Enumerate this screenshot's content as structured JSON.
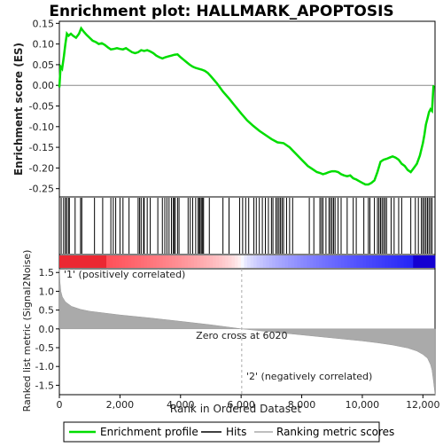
{
  "chart_data": {
    "type": "line",
    "title": "Enrichment plot: HALLMARK_APOPTOSIS",
    "xlabel": "Rank in Ordered Dataset",
    "xlim": [
      0,
      12400
    ],
    "x_ticks": [
      0,
      2000,
      4000,
      6000,
      8000,
      10000,
      12000
    ],
    "x_tick_labels": [
      "0",
      "2,000",
      "4,000",
      "6,000",
      "8,000",
      "10,000",
      "12,000"
    ],
    "es_panel": {
      "ylabel": "Enrichment score (ES)",
      "ylim": [
        -0.27,
        0.155
      ],
      "y_ticks": [
        0.15,
        0.1,
        0.05,
        0.0,
        -0.05,
        -0.1,
        -0.15,
        -0.2,
        -0.25
      ],
      "y_tick_labels": [
        "0.15",
        "0.10",
        "0.05",
        "0.00",
        "-0.05",
        "-0.10",
        "-0.15",
        "-0.20",
        "-0.25"
      ],
      "series": [
        {
          "name": "Enrichment profile",
          "color": "#00dd00",
          "x": [
            0,
            40,
            90,
            150,
            200,
            250,
            300,
            380,
            450,
            550,
            650,
            720,
            800,
            900,
            1000,
            1100,
            1200,
            1300,
            1400,
            1500,
            1600,
            1700,
            1800,
            1900,
            2000,
            2100,
            2200,
            2300,
            2400,
            2500,
            2600,
            2700,
            2800,
            2900,
            3000,
            3100,
            3200,
            3300,
            3400,
            3500,
            3600,
            3700,
            3800,
            3900,
            4000,
            4100,
            4200,
            4300,
            4400,
            4500,
            4600,
            4700,
            4800,
            4900,
            5000,
            5200,
            5400,
            5600,
            5800,
            6000,
            6200,
            6400,
            6600,
            6800,
            7000,
            7200,
            7400,
            7600,
            7800,
            8000,
            8200,
            8400,
            8500,
            8600,
            8700,
            8800,
            8900,
            9000,
            9100,
            9200,
            9300,
            9400,
            9500,
            9600,
            9700,
            9800,
            9900,
            10000,
            10100,
            10200,
            10300,
            10400,
            10500,
            10600,
            10700,
            10800,
            10900,
            11000,
            11100,
            11200,
            11300,
            11400,
            11500,
            11600,
            11700,
            11800,
            11900,
            12000,
            12050,
            12100,
            12150,
            12200,
            12250,
            12300,
            12350
          ],
          "y": [
            -0.005,
            0.045,
            0.04,
            0.07,
            0.1,
            0.125,
            0.12,
            0.125,
            0.12,
            0.115,
            0.125,
            0.138,
            0.13,
            0.122,
            0.115,
            0.108,
            0.105,
            0.1,
            0.102,
            0.098,
            0.092,
            0.087,
            0.088,
            0.09,
            0.088,
            0.087,
            0.09,
            0.085,
            0.08,
            0.078,
            0.08,
            0.085,
            0.083,
            0.085,
            0.082,
            0.078,
            0.072,
            0.068,
            0.065,
            0.068,
            0.07,
            0.072,
            0.074,
            0.075,
            0.068,
            0.062,
            0.056,
            0.05,
            0.045,
            0.042,
            0.04,
            0.038,
            0.035,
            0.03,
            0.022,
            0.005,
            -0.015,
            -0.032,
            -0.05,
            -0.068,
            -0.085,
            -0.098,
            -0.11,
            -0.12,
            -0.13,
            -0.138,
            -0.14,
            -0.15,
            -0.165,
            -0.18,
            -0.195,
            -0.205,
            -0.21,
            -0.212,
            -0.215,
            -0.213,
            -0.21,
            -0.208,
            -0.208,
            -0.21,
            -0.215,
            -0.218,
            -0.22,
            -0.218,
            -0.225,
            -0.228,
            -0.232,
            -0.236,
            -0.24,
            -0.24,
            -0.236,
            -0.23,
            -0.21,
            -0.185,
            -0.18,
            -0.178,
            -0.175,
            -0.172,
            -0.175,
            -0.18,
            -0.19,
            -0.195,
            -0.205,
            -0.21,
            -0.2,
            -0.19,
            -0.17,
            -0.14,
            -0.12,
            -0.095,
            -0.08,
            -0.065,
            -0.058,
            -0.062,
            0.0
          ]
        }
      ]
    },
    "hits": {
      "name": "Hits",
      "color": "#000000",
      "x": [
        60,
        140,
        200,
        240,
        300,
        330,
        520,
        700,
        740,
        1160,
        1430,
        1700,
        1780,
        1860,
        2000,
        2100,
        2300,
        2600,
        2650,
        2700,
        2780,
        2800,
        2900,
        3000,
        3250,
        3400,
        3480,
        3550,
        3620,
        3700,
        3760,
        3800,
        3820,
        3900,
        3950,
        4250,
        4320,
        4400,
        4500,
        4580,
        4620,
        4650,
        4700,
        4730,
        4760,
        4950,
        5400,
        5600,
        5950,
        6050,
        6150,
        6250,
        6420,
        6500,
        6600,
        6700,
        6800,
        6900,
        7000,
        7050,
        7150,
        7200,
        7250,
        7300,
        7350,
        7400,
        7500,
        7600,
        7700,
        8250,
        8400,
        8600,
        8650,
        8700,
        8800,
        8900,
        8950,
        9000,
        9050,
        9100,
        9200,
        9300,
        9500,
        9700,
        9800,
        10050,
        10200,
        10250,
        10400,
        10500,
        10550,
        10600,
        10650,
        10700,
        10750,
        10800,
        10950,
        11050,
        11200,
        11300,
        11600,
        11750,
        11850,
        11950,
        12000,
        12050,
        12100,
        12150,
        12200,
        12250,
        12300
      ]
    },
    "ranked_metric": {
      "name": "Ranking metric scores",
      "color": "#aaaaaa",
      "ylabel": "Ranked list metric (Signal2Noise)",
      "ylim": [
        -1.75,
        1.6
      ],
      "y_ticks": [
        1.5,
        1.0,
        0.5,
        0.0,
        -0.5,
        -1.0,
        -1.5
      ],
      "y_tick_labels": [
        "1.5",
        "1.0",
        "0.5",
        "0.0",
        "-0.5",
        "-1.0",
        "-1.5"
      ],
      "x": [
        0,
        20,
        50,
        100,
        200,
        400,
        700,
        1000,
        1500,
        2000,
        3000,
        4000,
        5000,
        6020,
        7000,
        8000,
        9000,
        10000,
        10500,
        11000,
        11500,
        11800,
        12000,
        12150,
        12250,
        12300,
        12350,
        12400
      ],
      "y": [
        1.6,
        1.25,
        1.0,
        0.85,
        0.72,
        0.6,
        0.52,
        0.47,
        0.42,
        0.37,
        0.29,
        0.2,
        0.11,
        0.0,
        -0.08,
        -0.16,
        -0.24,
        -0.32,
        -0.37,
        -0.43,
        -0.51,
        -0.59,
        -0.68,
        -0.78,
        -0.95,
        -1.1,
        -1.4,
        -1.75
      ]
    },
    "zero_cross": {
      "x": 6020,
      "label": "Zero cross at 6020"
    },
    "annotations": [
      {
        "text": "'1' (positively correlated)",
        "color": "#cc0000"
      },
      {
        "text": "'2' (negatively correlated)",
        "color": "#0000cc"
      }
    ],
    "legend": {
      "placement": "bottom",
      "items": [
        {
          "label": "Enrichment profile",
          "color": "#00dd00"
        },
        {
          "label": "Hits",
          "color": "#000000"
        },
        {
          "label": "Ranking metric scores",
          "color": "#aaaaaa"
        }
      ]
    },
    "colorbar": {
      "x_min": 0,
      "x_max": 12400,
      "zero_x": 6020
    }
  }
}
